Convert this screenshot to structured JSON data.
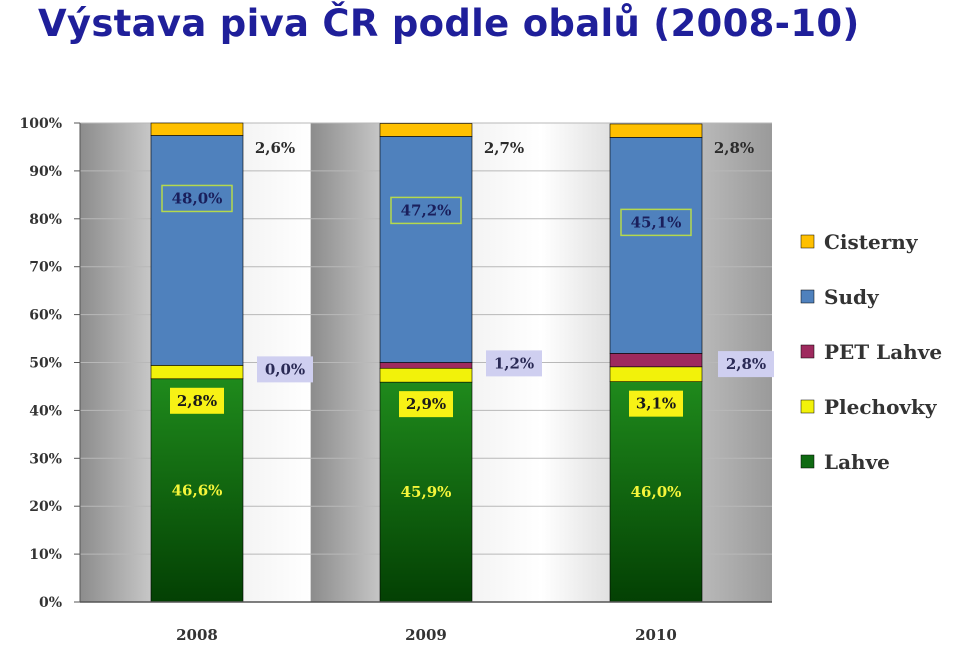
{
  "title": "Výstava piva ČR podle obalů (2008-10)",
  "chart_data": {
    "type": "bar",
    "stacked": true,
    "title": "Výstava piva ČR podle obalů (2008-10)",
    "xlabel": "",
    "ylabel": "",
    "ylim": [
      0,
      100
    ],
    "y_ticks": [
      "0%",
      "10%",
      "20%",
      "30%",
      "40%",
      "50%",
      "60%",
      "70%",
      "80%",
      "90%",
      "100%"
    ],
    "categories": [
      "2008",
      "2009",
      "2010"
    ],
    "legend_position": "right",
    "series": [
      {
        "name": "Lahve",
        "color": "#0f6a12",
        "values": [
          46.6,
          45.9,
          46.0
        ],
        "labels": [
          "46,6%",
          "45,9%",
          "46,0%"
        ]
      },
      {
        "name": "Plechovky",
        "color": "#f2f20a",
        "values": [
          2.8,
          2.9,
          3.1
        ],
        "labels": [
          "2,8%",
          "2,9%",
          "3,1%"
        ]
      },
      {
        "name": "PET Lahve",
        "color": "#9e2a5e",
        "values": [
          0.0,
          1.2,
          2.8
        ],
        "labels": [
          "0,0%",
          "1,2%",
          "2,8%"
        ]
      },
      {
        "name": "Sudy",
        "color": "#4f81bd",
        "values": [
          48.0,
          47.2,
          45.1
        ],
        "labels": [
          "48,0%",
          "47,2%",
          "45,1%"
        ]
      },
      {
        "name": "Cisterny",
        "color": "#ffc000",
        "values": [
          2.6,
          2.7,
          2.8
        ],
        "labels": [
          "2,6%",
          "2,7%",
          "2,8%"
        ]
      }
    ],
    "legend_order": [
      "Cisterny",
      "Sudy",
      "PET Lahve",
      "Plechovky",
      "Lahve"
    ]
  }
}
